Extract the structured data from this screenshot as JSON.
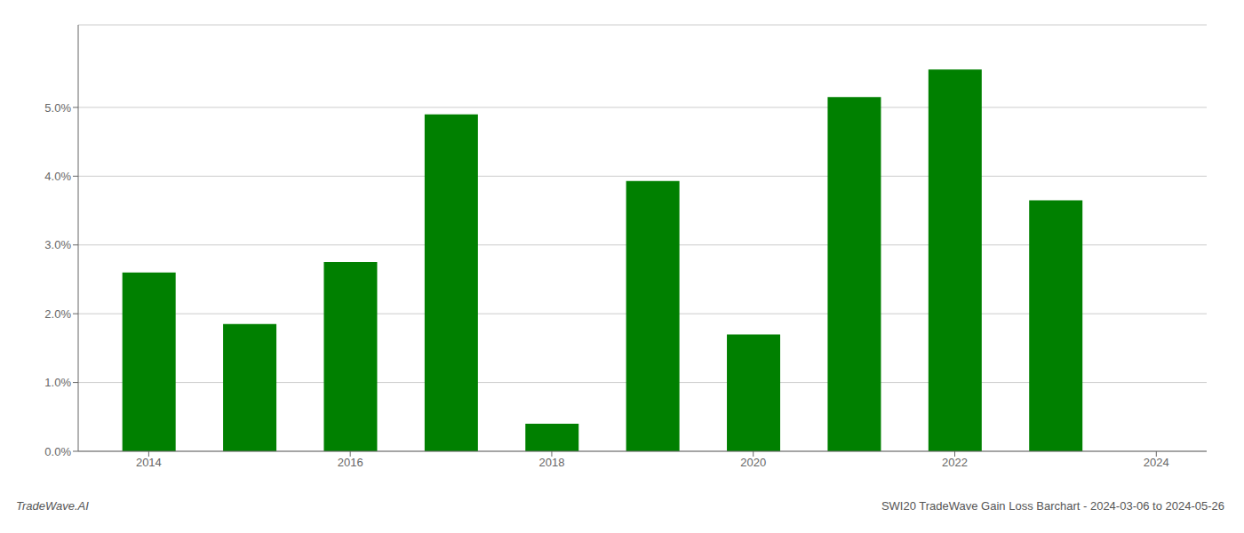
{
  "chart_data": {
    "type": "bar",
    "x": [
      2014,
      2015,
      2016,
      2017,
      2018,
      2019,
      2020,
      2021,
      2022,
      2023
    ],
    "values": [
      0.026,
      0.0185,
      0.0275,
      0.049,
      0.004,
      0.0393,
      0.017,
      0.0515,
      0.0555,
      0.0365
    ],
    "color": "#008000",
    "xlim": [
      2013.3,
      2024.5
    ],
    "xticks": [
      2014,
      2016,
      2018,
      2020,
      2022,
      2024
    ],
    "ylim": [
      0,
      0.062
    ],
    "yticks": [
      {
        "value": 0.0,
        "label": "0.0%"
      },
      {
        "value": 0.01,
        "label": "1.0%"
      },
      {
        "value": 0.02,
        "label": "2.0%"
      },
      {
        "value": 0.03,
        "label": "3.0%"
      },
      {
        "value": 0.04,
        "label": "4.0%"
      },
      {
        "value": 0.05,
        "label": "5.0%"
      }
    ],
    "grid": true,
    "annotations": [
      "TradeWave.AI",
      "SWI20 TradeWave Gain Loss Barchart - 2024-03-06 to 2024-05-26"
    ]
  }
}
